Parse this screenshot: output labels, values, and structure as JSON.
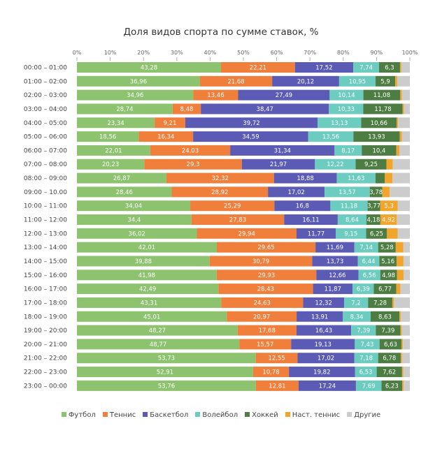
{
  "chart_data": {
    "type": "bar",
    "orientation": "horizontal",
    "stacked": true,
    "title": "Доля видов спорта по сумме ставок, %",
    "xlabel": "",
    "ylabel": "",
    "xlim": [
      0,
      100
    ],
    "x_ticks": [
      "0%",
      "10%",
      "20%",
      "30%",
      "40%",
      "50%",
      "60%",
      "70%",
      "80%",
      "90%",
      "100%"
    ],
    "grid": false,
    "legend_position": "bottom",
    "categories": [
      "00:00 – 01:00",
      "01:00 – 02:00",
      "02:00 – 03:00",
      "03:00 – 04:00",
      "04:00 – 05:00",
      "05:00 – 06:00",
      "06:00 – 07:00",
      "07:00 – 08:00",
      "08:00 – 09:00",
      "09:00 – 10.00",
      "10:00 – 11:00",
      "11:00 – 12:00",
      "12:00 – 13:00",
      "13:00 – 14:00",
      "14:00 – 15:00",
      "15:00 – 16:00",
      "16:00 – 17:00",
      "17:00 – 18:00",
      "18:00 – 19:00",
      "19:00 – 20:00",
      "20:00 – 21:00",
      "21:00 – 22:00",
      "22:00 – 23:00",
      "23:00 – 00:00"
    ],
    "series": [
      {
        "name": "Футбол",
        "color": "#8dc26f",
        "values": [
          43.28,
          36.96,
          34.96,
          28.74,
          23.34,
          18.56,
          22.01,
          20.23,
          26.87,
          28.46,
          34.04,
          34.4,
          36.02,
          42.01,
          39.88,
          41.98,
          42.49,
          43.31,
          45.01,
          48.27,
          48.77,
          53.73,
          52.91,
          53.76
        ],
        "labels": [
          "43,28",
          "36,96",
          "34,96",
          "28,74",
          "23,34",
          "18,56",
          "22,01",
          "20,23",
          "26,87",
          "28,46",
          "34,04",
          "34,4",
          "36,02",
          "42,01",
          "39,88",
          "41,98",
          "42,49",
          "43,31",
          "45,01",
          "48,27",
          "48,77",
          "53,73",
          "52,91",
          "53,76"
        ]
      },
      {
        "name": "Теннис",
        "color": "#f07f3c",
        "values": [
          22.21,
          21.68,
          13.46,
          8.48,
          9.21,
          16.34,
          24.03,
          29.3,
          32.32,
          28.92,
          25.29,
          27.83,
          29.94,
          29.65,
          30.79,
          29.93,
          28.43,
          24.63,
          20.97,
          17.68,
          15.57,
          12.55,
          10.78,
          12.81
        ],
        "labels": [
          "22,21",
          "21,68",
          "13,46",
          "8,48",
          "9,21",
          "16,34",
          "24,03",
          "29,3",
          "32,32",
          "28,92",
          "25,29",
          "27,83",
          "29,94",
          "29,65",
          "30,79",
          "29,93",
          "28,43",
          "24,63",
          "20,97",
          "17,68",
          "15,57",
          "12,55",
          "10,78",
          "12,81"
        ]
      },
      {
        "name": "Баскетбол",
        "color": "#5b5bb5",
        "values": [
          17.52,
          20.12,
          27.49,
          38.47,
          39.72,
          34.59,
          31.34,
          21.97,
          18.88,
          17.02,
          16.8,
          16.11,
          11.77,
          11.69,
          13.73,
          12.66,
          11.87,
          12.32,
          13.91,
          16.43,
          19.13,
          17.02,
          19.82,
          17.24
        ],
        "labels": [
          "17,52",
          "20,12",
          "27,49",
          "38,47",
          "39,72",
          "34,59",
          "31,34",
          "21,97",
          "18,88",
          "17,02",
          "16,8",
          "16,11",
          "11,77",
          "11,69",
          "13,73",
          "12,66",
          "11,87",
          "12,32",
          "13,91",
          "16,43",
          "19,13",
          "17,02",
          "19,82",
          "17,24"
        ]
      },
      {
        "name": "Волейбол",
        "color": "#6cccc0",
        "values": [
          7.74,
          10.95,
          10.14,
          10.33,
          13.13,
          13.56,
          8.17,
          12.22,
          11.63,
          13.57,
          11.18,
          8.64,
          9.15,
          7.14,
          6.44,
          6.56,
          6.39,
          7.2,
          8.34,
          7.39,
          7.43,
          7.18,
          6.53,
          7.69
        ],
        "labels": [
          "7,74",
          "10,95",
          "10,14",
          "10,33",
          "13,13",
          "13,56",
          "8,17",
          "12,22",
          "11,63",
          "13,57",
          "11,18",
          "8,64",
          "9,15",
          "7,14",
          "6,44",
          "6,56",
          "6,39",
          "7,2",
          "8,34",
          "7,39",
          "7,43",
          "7,18",
          "6,53",
          "7,69"
        ]
      },
      {
        "name": "Хоккей",
        "color": "#4e7d44",
        "values": [
          6.3,
          5.9,
          11.08,
          11.78,
          10.66,
          13.93,
          10.4,
          9.25,
          2.8,
          3.78,
          3.77,
          4.18,
          6.25,
          5.28,
          5.16,
          4.98,
          6.77,
          7.28,
          8.63,
          7.39,
          6.63,
          6.78,
          7.62,
          6.23
        ],
        "labels": [
          "6,3",
          "5,9",
          "11,08",
          "11,78",
          "10,66",
          "13,93",
          "10,4",
          "9,25",
          null,
          "3,78",
          "3,77",
          "4,18",
          "6,25",
          "5,28",
          "5,16",
          "4,98",
          "6,77",
          "7,28",
          "8,63",
          "7,39",
          "6,63",
          "6,78",
          "7,62",
          "6,23"
        ]
      },
      {
        "name": "Наст. теннис",
        "color": "#f2a52c",
        "values": [
          0.4,
          0.6,
          0.5,
          0.4,
          0.4,
          0.6,
          0.9,
          1.9,
          2.3,
          2.2,
          5.3,
          4.92,
          3.2,
          2.3,
          2.1,
          2.0,
          1.2,
          0.5,
          0.4,
          0.4,
          0.4,
          0.4,
          0.4,
          0.4
        ],
        "labels": [
          null,
          null,
          null,
          null,
          null,
          null,
          null,
          null,
          null,
          null,
          "5,3",
          "4,92",
          null,
          null,
          null,
          null,
          null,
          null,
          null,
          null,
          null,
          null,
          null,
          null
        ]
      },
      {
        "name": "Другие",
        "color": "#cccccc",
        "values": [
          2.55,
          3.79,
          2.37,
          1.8,
          3.54,
          2.42,
          3.15,
          5.13,
          5.2,
          6.05,
          3.62,
          3.92,
          3.67,
          1.93,
          1.9,
          1.89,
          2.85,
          4.76,
          2.74,
          2.44,
          2.07,
          2.34,
          1.94,
          1.87
        ],
        "labels": [
          null,
          null,
          null,
          null,
          null,
          null,
          null,
          null,
          null,
          null,
          null,
          null,
          null,
          null,
          null,
          null,
          null,
          null,
          null,
          null,
          null,
          null,
          null,
          null
        ]
      }
    ]
  }
}
